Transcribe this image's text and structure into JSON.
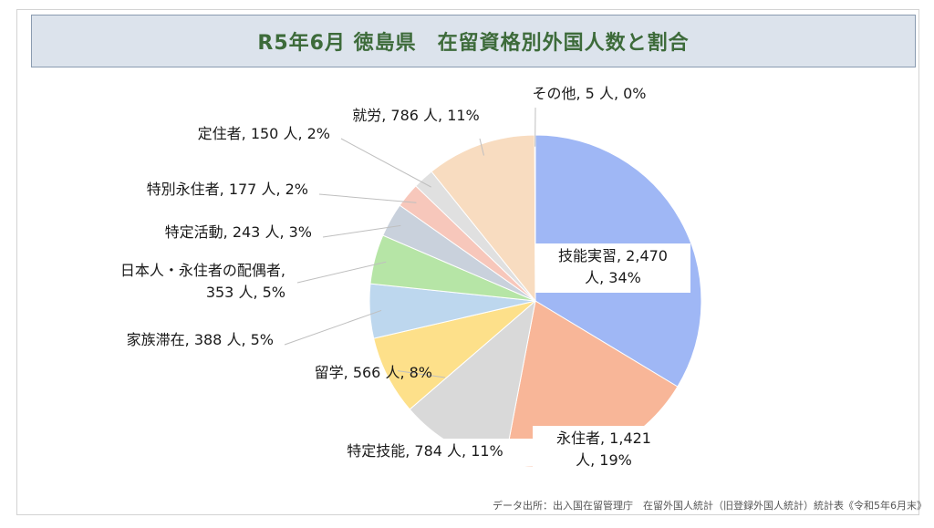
{
  "title": "R5年6月 徳島県　在留資格別外国人数と割合",
  "source": "データ出所：出入国在留管理庁　在留外国人統計（旧登録外国人統計）統計表《令和5年6月末》",
  "chart_data": {
    "type": "pie",
    "title": "R5年6月 徳島県　在留資格別外国人数と割合",
    "unit": "人",
    "slices": [
      {
        "label": "技能実習",
        "value": 2470,
        "percent": "34%",
        "color": "#9fb7f5",
        "lines": [
          "技能実習, 2,470",
          "人, 34%"
        ]
      },
      {
        "label": "永住者",
        "value": 1421,
        "percent": "19%",
        "color": "#f8b698",
        "lines": [
          "永住者, 1,421",
          "人, 19%"
        ]
      },
      {
        "label": "特定技能",
        "value": 784,
        "percent": "11%",
        "color": "#d9d9d9",
        "lines": [
          "特定技能, 784 人, 11%"
        ]
      },
      {
        "label": "留学",
        "value": 566,
        "percent": "8%",
        "color": "#fde08a",
        "lines": [
          "留学, 566 人, 8%"
        ]
      },
      {
        "label": "家族滞在",
        "value": 388,
        "percent": "5%",
        "color": "#bdd7ee",
        "lines": [
          "家族滞在, 388 人, 5%"
        ]
      },
      {
        "label": "日本人・永住者の配偶者",
        "value": 353,
        "percent": "5%",
        "color": "#b6e5a6",
        "lines": [
          "日本人・永住者の配偶者,",
          "353 人, 5%"
        ]
      },
      {
        "label": "特定活動",
        "value": 243,
        "percent": "3%",
        "color": "#c9d1dc",
        "lines": [
          "特定活動, 243 人, 3%"
        ]
      },
      {
        "label": "特別永住者",
        "value": 177,
        "percent": "2%",
        "color": "#f7c7bb",
        "lines": [
          "特別永住者, 177 人, 2%"
        ]
      },
      {
        "label": "定住者",
        "value": 150,
        "percent": "2%",
        "color": "#e0e0e0",
        "lines": [
          "定住者, 150 人, 2%"
        ]
      },
      {
        "label": "就労",
        "value": 786,
        "percent": "11%",
        "color": "#f8dcc0",
        "lines": [
          "就労, 786 人, 11%"
        ]
      },
      {
        "label": "その他",
        "value": 5,
        "percent": "0%",
        "color": "#2e7d32",
        "lines": [
          "その他, 5 人, 0%"
        ]
      }
    ]
  }
}
